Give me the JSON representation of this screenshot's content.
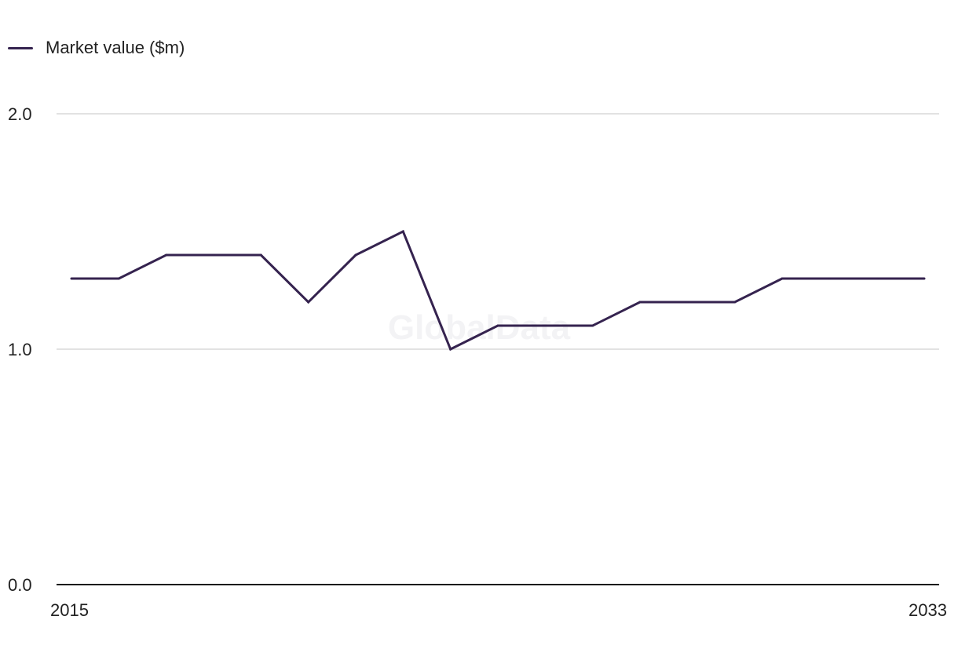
{
  "legend": {
    "label": "Market value ($m)"
  },
  "watermark": "GlobalData",
  "colors": {
    "series": "#35234f",
    "grid": "#d9d9d9",
    "axis": "#1a1a1a"
  },
  "chart_data": {
    "type": "line",
    "title": "",
    "xlabel": "",
    "ylabel": "",
    "x": [
      2015,
      2016,
      2017,
      2018,
      2019,
      2020,
      2021,
      2022,
      2023,
      2024,
      2025,
      2026,
      2027,
      2028,
      2029,
      2030,
      2031,
      2032,
      2033
    ],
    "x_tick_labels": [
      "2015",
      "2033"
    ],
    "y_tick_labels": [
      "0.0",
      "1.0",
      "2.0"
    ],
    "ylim": [
      0,
      2
    ],
    "grid": true,
    "legend_position": "top-left",
    "series": [
      {
        "name": "Market value ($m)",
        "values": [
          1.3,
          1.3,
          1.4,
          1.4,
          1.4,
          1.2,
          1.4,
          1.5,
          1.0,
          1.1,
          1.1,
          1.1,
          1.2,
          1.2,
          1.2,
          1.3,
          1.3,
          1.3,
          1.3
        ]
      }
    ]
  }
}
